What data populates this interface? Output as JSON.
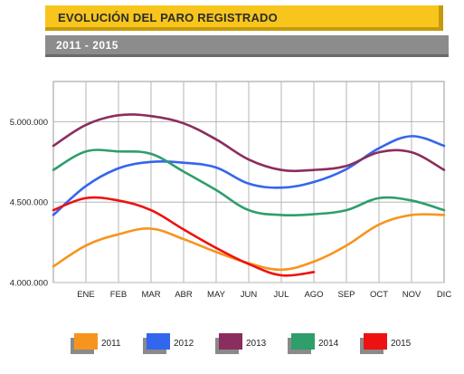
{
  "header": {
    "title": "EVOLUCIÓN DEL PARO REGISTRADO",
    "subtitle": "2011  -  2015"
  },
  "chart_data": {
    "type": "line",
    "categories": [
      "",
      "ENE",
      "FEB",
      "MAR",
      "ABR",
      "MAY",
      "JUN",
      "JUL",
      "AGO",
      "SEP",
      "OCT",
      "NOV",
      "DIC"
    ],
    "y_ticks": [
      4000000,
      4500000,
      5000000
    ],
    "y_tick_labels": [
      "4.000.000",
      "4.500.000",
      "5.000.000"
    ],
    "ylim": [
      4000000,
      5250000
    ],
    "grid": true,
    "legend_position": "bottom",
    "series": [
      {
        "name": "2011",
        "color": "#f7941d",
        "values": [
          4100000,
          4230000,
          4300000,
          4335000,
          4270000,
          4190000,
          4120000,
          4080000,
          4130000,
          4230000,
          4360000,
          4420000,
          4420000
        ]
      },
      {
        "name": "2012",
        "color": "#3366ee",
        "values": [
          4420000,
          4600000,
          4710000,
          4750000,
          4745000,
          4715000,
          4615000,
          4590000,
          4625000,
          4705000,
          4835000,
          4910000,
          4850000
        ]
      },
      {
        "name": "2013",
        "color": "#8b2d5e",
        "values": [
          4850000,
          4980000,
          5040000,
          5035000,
          4990000,
          4890000,
          4765000,
          4700000,
          4700000,
          4725000,
          4810000,
          4810000,
          4700000
        ]
      },
      {
        "name": "2014",
        "color": "#2e9e6b",
        "values": [
          4700000,
          4815000,
          4815000,
          4800000,
          4690000,
          4575000,
          4450000,
          4420000,
          4425000,
          4450000,
          4525000,
          4510000,
          4450000
        ]
      },
      {
        "name": "2015",
        "color": "#ee1111",
        "values": [
          4450000,
          4525000,
          4510000,
          4450000,
          4330000,
          4215000,
          4115000,
          4045000,
          4065000,
          null,
          null,
          null,
          null
        ]
      }
    ]
  }
}
